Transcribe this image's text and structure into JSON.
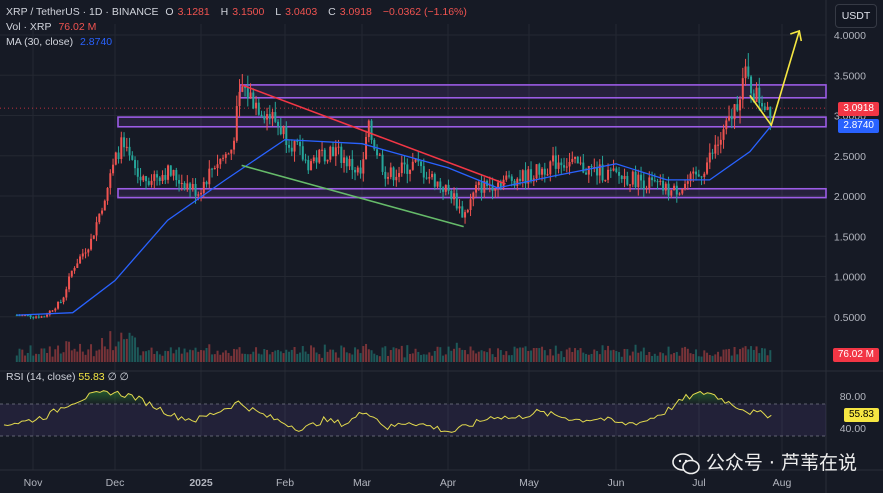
{
  "legend": {
    "symbol": "XRP / TetherUS · 1D · BINANCE",
    "open_label": "O",
    "open": "3.1281",
    "high_label": "H",
    "high": "3.1500",
    "low_label": "L",
    "low": "3.0403",
    "close_label": "C",
    "close": "3.0918",
    "change": "−0.0362 (−1.16%)",
    "vol_label": "Vol · XRP",
    "vol_value": "76.02 M",
    "ma_label": "MA (30, close)",
    "ma_value": "2.8740"
  },
  "currency_button": "USDT",
  "price_pills": {
    "close": "3.0918",
    "ma": "2.8740",
    "volume": "76.02 M",
    "rsi": "55.83"
  },
  "rsi_legend": {
    "label": "RSI (14, close)",
    "value": "55.83",
    "extra": "∅ ∅"
  },
  "watermark": "公众号 · 芦苇在说",
  "colors": {
    "up": "#ef5350",
    "down": "#26a69a",
    "ma": "#2962ff",
    "rsi": "#e2d94e",
    "purple": "#9c5ce6",
    "red_trend": "#f23645",
    "green_trend": "#66bb6a",
    "arrow": "#f5e642",
    "ma_pill": "#2962ff",
    "close_pill": "#f23645"
  },
  "chart_data": [
    {
      "type": "candlestick",
      "title": "XRP / TetherUS · 1D · BINANCE",
      "y_ticks": [
        "4.0000",
        "3.5000",
        "3.0000",
        "2.5000",
        "2.0000",
        "1.5000",
        "1.0000",
        "0.5000"
      ],
      "ylim": [
        0,
        4.2
      ],
      "x_ticks": [
        "Nov",
        "Dec",
        "2025",
        "Feb",
        "Mar",
        "Apr",
        "May",
        "Jun",
        "Jul",
        "Aug"
      ],
      "key_levels": [
        {
          "name": "zone_top",
          "low": 3.22,
          "high": 3.38
        },
        {
          "name": "zone_mid",
          "low": 2.86,
          "high": 2.98
        },
        {
          "name": "zone_bottom",
          "low": 1.98,
          "high": 2.09
        }
      ],
      "trendlines": [
        {
          "name": "descending_resistance",
          "from": [
            "Jan 16",
            3.38
          ],
          "to": [
            "Apr 23",
            2.15
          ]
        },
        {
          "name": "descending_support",
          "from": [
            "Jan 16",
            2.38
          ],
          "to": [
            "Apr 7",
            1.62
          ]
        }
      ],
      "projection_arrow": {
        "from": [
          "Jul 28",
          2.88
        ],
        "to": [
          "Aug 3",
          4.05
        ]
      },
      "series": [
        {
          "name": "price",
          "dates": [
            "Oct 25",
            "Nov 5",
            "Nov 12",
            "Nov 16",
            "Nov 23",
            "Dec 3",
            "Dec 10",
            "Dec 20",
            "Dec 31",
            "Jan 6",
            "Jan 12",
            "Jan 16",
            "Jan 23",
            "Jan 28",
            "Feb 3",
            "Feb 10",
            "Feb 20",
            "Mar 1",
            "Mar 3",
            "Mar 10",
            "Mar 20",
            "Apr 3",
            "Apr 7",
            "Apr 12",
            "Apr 23",
            "May 1",
            "May 12",
            "May 20",
            "Jun 1",
            "Jun 10",
            "Jun 22",
            "Jul 1",
            "Jul 10",
            "Jul 14",
            "Jul 18",
            "Jul 22",
            "Jul 28"
          ],
          "values": [
            0.52,
            0.5,
            0.7,
            1.1,
            1.45,
            2.65,
            2.2,
            2.3,
            2.05,
            2.4,
            2.55,
            3.35,
            3.1,
            2.95,
            2.7,
            2.4,
            2.6,
            2.25,
            2.85,
            2.25,
            2.4,
            2.0,
            1.75,
            2.1,
            2.2,
            2.25,
            2.45,
            2.35,
            2.25,
            2.2,
            2.05,
            2.25,
            2.75,
            3.05,
            3.5,
            3.25,
            3.09
          ]
        },
        {
          "name": "MA (30, close)",
          "dates": [
            "Oct 25",
            "Nov 16",
            "Dec 1",
            "Dec 20",
            "Jan 10",
            "Feb 1",
            "Mar 1",
            "Apr 1",
            "Apr 20",
            "May 10",
            "Jun 1",
            "Jun 20",
            "Jul 5",
            "Jul 20",
            "Jul 28"
          ],
          "values": [
            0.52,
            0.55,
            0.95,
            1.7,
            2.2,
            2.7,
            2.65,
            2.35,
            2.1,
            2.25,
            2.4,
            2.2,
            2.2,
            2.55,
            2.874
          ]
        }
      ]
    },
    {
      "type": "bar",
      "title": "Vol · XRP",
      "current_value": "76.02 M"
    },
    {
      "type": "line",
      "title": "RSI (14, close)",
      "y_ticks": [
        "80.00",
        "40.00"
      ],
      "bands": [
        30,
        70
      ],
      "ylim": [
        25,
        90
      ],
      "series": [
        {
          "name": "RSI",
          "values": [
            45,
            48,
            55,
            70,
            80,
            85,
            80,
            68,
            55,
            50,
            60,
            72,
            58,
            48,
            38,
            50,
            45,
            62,
            40,
            48,
            42,
            35,
            45,
            55,
            52,
            60,
            55,
            50,
            52,
            45,
            48,
            60,
            78,
            85,
            72,
            60,
            55.83
          ]
        }
      ]
    }
  ]
}
